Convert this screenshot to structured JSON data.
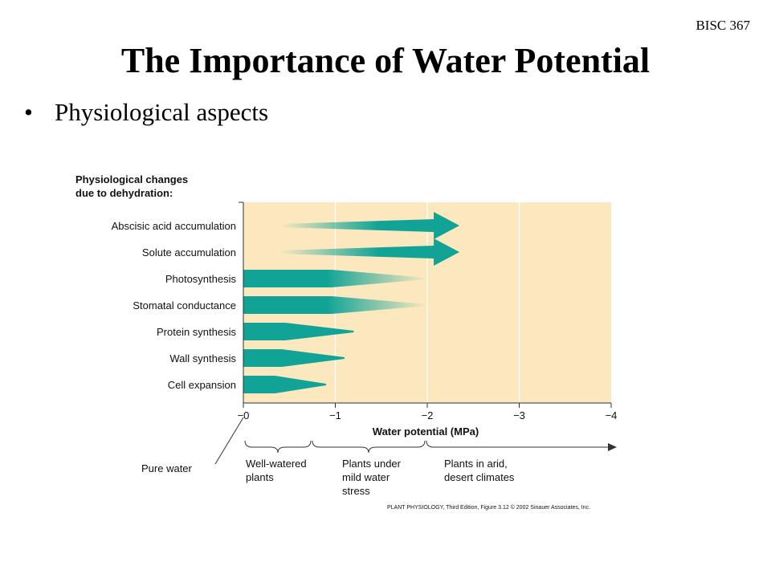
{
  "header": {
    "course": "BISC 367"
  },
  "slide": {
    "title": "The Importance of Water Potential",
    "bullet": "Physiological aspects"
  },
  "figure": {
    "heading_line1": "Physiological changes",
    "heading_line2": "due to dehydration:",
    "rows": [
      {
        "label": "Abscisic acid accumulation",
        "kind": "increase",
        "start": -0.4,
        "end": -2.35
      },
      {
        "label": "Solute accumulation",
        "kind": "increase",
        "start": -0.4,
        "end": -2.35
      },
      {
        "label": "Photosynthesis",
        "kind": "fade",
        "end": -2.0
      },
      {
        "label": "Stomatal conductance",
        "kind": "fade",
        "end": -2.0
      },
      {
        "label": "Protein synthesis",
        "kind": "taper",
        "end": -1.2
      },
      {
        "label": "Wall synthesis",
        "kind": "taper",
        "end": -1.1
      },
      {
        "label": "Cell expansion",
        "kind": "taper",
        "end": -0.9
      }
    ],
    "axis": {
      "title": "Water potential (MPa)",
      "range": [
        0,
        -4
      ],
      "ticks": [
        "−0",
        "−1",
        "−2",
        "−3",
        "−4"
      ]
    },
    "pure_water": "Pure water",
    "zones": [
      {
        "lines": [
          "Well-watered",
          "plants"
        ]
      },
      {
        "lines": [
          "Plants under",
          "mild water",
          "stress"
        ]
      },
      {
        "lines": [
          "Plants in arid,",
          "desert climates"
        ]
      }
    ],
    "credit": "PLANT PHYSIOLOGY, Third Edition, Figure 3.12  © 2002 Sinauer Associates, Inc.",
    "colors": {
      "background": "#fbe8bf",
      "bar": "#10a396",
      "grid": "#ffffff"
    }
  }
}
